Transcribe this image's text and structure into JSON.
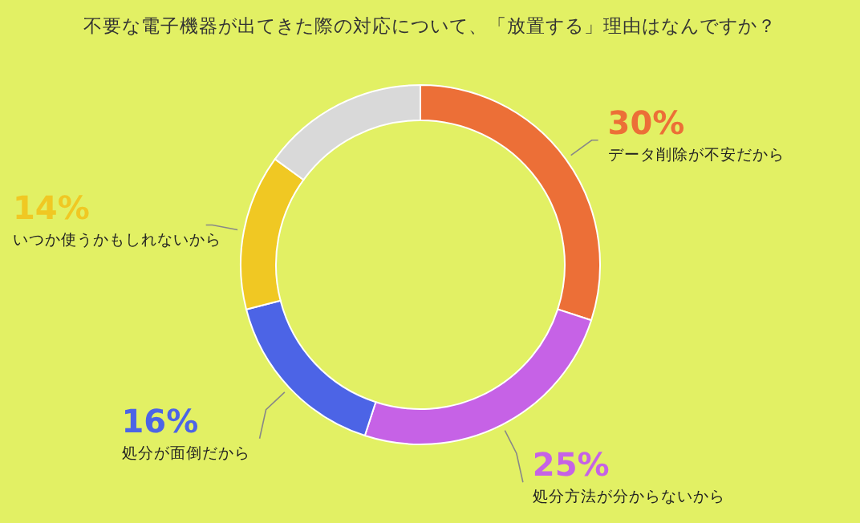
{
  "chart_data": {
    "type": "donut",
    "title": "不要な電子機器が出てきた際の対応について、「放置する」理由はなんですか？",
    "categories": [
      "データ削除が不安だから",
      "処分方法が分からないから",
      "処分が面倒だから",
      "いつか使うかもしれないから",
      null
    ],
    "values": [
      30,
      25,
      16,
      14,
      15
    ],
    "colors": [
      "#ec6f37",
      "#c662e6",
      "#4c64e6",
      "#f0c823",
      "#d9d9d9"
    ],
    "value_labels": [
      "30%",
      "25%",
      "16%",
      "14%",
      null
    ]
  }
}
